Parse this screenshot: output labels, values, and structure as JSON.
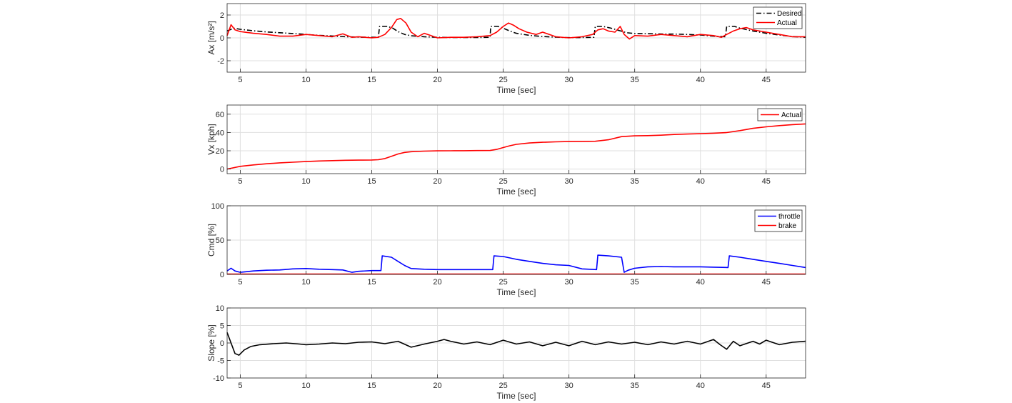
{
  "chart_data": [
    {
      "type": "line",
      "ylabel": "Ax [m/s²]",
      "xlabel": "Time [sec]",
      "xlim": [
        4,
        48
      ],
      "ylim": [
        -3,
        3
      ],
      "xticks": [
        5,
        10,
        15,
        20,
        25,
        30,
        35,
        40,
        45
      ],
      "yticks": [
        -2,
        0,
        2
      ],
      "grid": true,
      "legend_position": "top-right",
      "series": [
        {
          "name": "Desired",
          "color": "#000000",
          "style": "dashdot",
          "x": [
            4,
            4.5,
            5,
            6,
            7,
            8,
            9,
            10,
            11,
            12,
            13,
            14,
            15,
            15.5,
            15.6,
            16.2,
            16.6,
            17,
            17.5,
            18,
            19,
            20,
            21,
            22,
            23,
            24,
            24.05,
            24.6,
            25,
            25.5,
            26,
            27,
            28,
            29,
            30,
            31,
            31.9,
            32,
            32.6,
            33.2,
            33.8,
            34.4,
            35,
            36,
            37,
            38,
            39,
            40,
            41,
            41.9,
            42,
            42.6,
            43,
            44,
            45,
            46,
            47,
            48
          ],
          "y": [
            0.6,
            0.85,
            0.75,
            0.62,
            0.52,
            0.45,
            0.38,
            0.3,
            0.22,
            0.16,
            0.1,
            0.06,
            0.05,
            0.05,
            1.0,
            1.0,
            0.85,
            0.55,
            0.3,
            0.18,
            0.1,
            0.05,
            0.03,
            0.03,
            0.03,
            0.05,
            1.0,
            1.0,
            0.85,
            0.6,
            0.4,
            0.22,
            0.12,
            0.06,
            0.02,
            0.03,
            0.05,
            1.0,
            1.0,
            0.85,
            0.65,
            0.45,
            0.38,
            0.36,
            0.34,
            0.33,
            0.3,
            0.25,
            0.15,
            0.1,
            1.0,
            1.0,
            0.85,
            0.6,
            0.4,
            0.25,
            0.12,
            0.05
          ]
        },
        {
          "name": "Actual",
          "color": "#ff0000",
          "style": "solid",
          "x": [
            4,
            4.3,
            4.6,
            5,
            6,
            7,
            8,
            9,
            10,
            11,
            12,
            12.8,
            13.5,
            14,
            15,
            15.5,
            16,
            16.5,
            16.9,
            17.2,
            17.6,
            18,
            18.5,
            19,
            19.5,
            20,
            21,
            22,
            23,
            24,
            24.5,
            25,
            25.4,
            25.8,
            26.2,
            26.8,
            27.5,
            28,
            29,
            30,
            31,
            31.8,
            32.2,
            32.6,
            33,
            33.5,
            33.9,
            34.2,
            34.6,
            35,
            36,
            37,
            38,
            39,
            40,
            41,
            41.6,
            42,
            42.5,
            43,
            43.5,
            44,
            45,
            46,
            47,
            48
          ],
          "y": [
            0.2,
            1.15,
            0.7,
            0.55,
            0.4,
            0.3,
            0.15,
            0.15,
            0.3,
            0.2,
            0.1,
            0.35,
            0.05,
            0.1,
            0.0,
            0.05,
            0.3,
            0.9,
            1.6,
            1.7,
            1.3,
            0.5,
            0.1,
            0.4,
            0.2,
            0.0,
            0.05,
            0.05,
            0.1,
            0.2,
            0.5,
            1.0,
            1.3,
            1.1,
            0.8,
            0.5,
            0.3,
            0.5,
            0.1,
            0.0,
            0.1,
            0.3,
            0.7,
            0.8,
            0.6,
            0.5,
            1.0,
            0.3,
            -0.1,
            0.2,
            0.15,
            0.3,
            0.2,
            0.1,
            0.3,
            0.2,
            0.05,
            0.3,
            0.6,
            0.8,
            0.9,
            0.7,
            0.5,
            0.3,
            0.1,
            0.1
          ]
        }
      ]
    },
    {
      "type": "line",
      "ylabel": "Vx [kph]",
      "xlabel": "Time [sec]",
      "xlim": [
        4,
        48
      ],
      "ylim": [
        -5,
        70
      ],
      "xticks": [
        5,
        10,
        15,
        20,
        25,
        30,
        35,
        40,
        45
      ],
      "yticks": [
        0,
        20,
        40,
        60
      ],
      "grid": true,
      "legend_position": "top-right",
      "series": [
        {
          "name": "Actual",
          "color": "#ff0000",
          "style": "solid",
          "x": [
            4,
            5,
            6,
            7,
            8,
            9,
            10,
            11,
            12,
            13,
            14,
            15,
            15.5,
            16,
            16.5,
            17,
            17.5,
            18,
            19,
            20,
            21,
            22,
            23,
            24,
            24.5,
            25,
            25.5,
            26,
            27,
            28,
            29,
            30,
            31,
            32,
            33,
            34,
            35,
            36,
            37,
            38,
            39,
            40,
            41,
            42,
            43,
            44,
            45,
            46,
            47,
            48
          ],
          "y": [
            0,
            3,
            4.5,
            5.8,
            6.8,
            7.5,
            8.2,
            8.8,
            9.2,
            9.6,
            9.8,
            9.9,
            10.2,
            11.5,
            14,
            16.5,
            18.2,
            19,
            19.6,
            19.9,
            20,
            20.1,
            20.2,
            20.3,
            21.5,
            23.5,
            25.5,
            27,
            28.5,
            29.3,
            29.8,
            30.1,
            30.2,
            30.4,
            32,
            35.5,
            36.3,
            36.6,
            37,
            37.8,
            38.3,
            38.7,
            39.2,
            39.9,
            42,
            44.5,
            46.2,
            47.5,
            48.6,
            49.4
          ]
        }
      ]
    },
    {
      "type": "line",
      "ylabel": "Cmd [%]",
      "xlabel": "Time [sec]",
      "xlim": [
        4,
        48
      ],
      "ylim": [
        0,
        100
      ],
      "xticks": [
        5,
        10,
        15,
        20,
        25,
        30,
        35,
        40,
        45
      ],
      "yticks": [
        0,
        50,
        100
      ],
      "grid": true,
      "legend_position": "top-right",
      "series": [
        {
          "name": "throttle",
          "color": "#0000ff",
          "style": "solid",
          "x": [
            4,
            4.3,
            4.6,
            5,
            5.5,
            6,
            7,
            8,
            9,
            10,
            11,
            12,
            12.8,
            13.5,
            14,
            15,
            15.7,
            15.8,
            16.5,
            17,
            17.5,
            18,
            19,
            20,
            21,
            22,
            23,
            24.2,
            24.3,
            25,
            26,
            27,
            28,
            29,
            30,
            31,
            32.1,
            32.2,
            33,
            34,
            34.2,
            34.5,
            35,
            36,
            37,
            38,
            39,
            40,
            41,
            42.1,
            42.2,
            43,
            44,
            45,
            46,
            47,
            48
          ],
          "y": [
            5,
            9,
            5,
            3,
            4,
            5,
            6,
            6.5,
            8,
            8.5,
            7.5,
            7,
            6.5,
            3,
            4.5,
            5.5,
            5.5,
            27,
            25,
            19,
            13,
            8.5,
            7.5,
            7,
            7,
            7,
            7,
            7,
            27,
            26,
            22,
            19,
            16,
            14,
            13,
            8,
            7,
            28,
            27,
            25,
            3,
            6,
            9,
            11,
            11.5,
            11,
            11,
            11,
            10.5,
            10,
            27,
            25,
            22,
            19,
            16,
            13,
            10
          ]
        },
        {
          "name": "brake",
          "color": "#ff0000",
          "style": "solid",
          "x": [
            4,
            48
          ],
          "y": [
            0.5,
            0.5
          ]
        }
      ]
    },
    {
      "type": "line",
      "ylabel": "Slope [%]",
      "xlabel": "Time [sec]",
      "xlim": [
        4,
        48
      ],
      "ylim": [
        -10,
        10
      ],
      "xticks": [
        5,
        10,
        15,
        20,
        25,
        30,
        35,
        40,
        45
      ],
      "yticks": [
        -10,
        -5,
        0,
        5,
        10
      ],
      "grid": true,
      "legend_position": "none",
      "series": [
        {
          "color": "#000000",
          "style": "solid",
          "x": [
            4,
            4.3,
            4.6,
            4.9,
            5.3,
            5.8,
            6.5,
            7.5,
            8.5,
            9.5,
            10,
            11,
            12,
            13,
            14,
            15,
            16,
            17,
            18,
            19,
            20,
            20.5,
            21,
            22,
            23,
            24,
            25,
            26,
            27,
            28,
            29,
            30,
            31,
            32,
            33,
            34,
            35,
            36,
            37,
            38,
            39,
            40,
            41,
            41.5,
            42,
            42.5,
            43,
            44,
            44.5,
            45,
            46,
            47,
            48
          ],
          "y": [
            3,
            0,
            -3,
            -3.5,
            -2,
            -1,
            -0.5,
            -0.2,
            0,
            -0.3,
            -0.5,
            -0.3,
            0,
            -0.2,
            0.2,
            0.3,
            -0.2,
            0.5,
            -1.2,
            -0.3,
            0.5,
            1,
            0.5,
            -0.3,
            0.3,
            -0.5,
            0.8,
            -0.3,
            0.3,
            -0.8,
            0.2,
            -0.8,
            0.5,
            -0.5,
            0.3,
            -0.3,
            0.2,
            -0.5,
            0.3,
            -0.3,
            0.5,
            -0.3,
            1,
            -0.5,
            -1.8,
            0.5,
            -0.8,
            0.5,
            -0.3,
            0.8,
            -0.5,
            0.2,
            0.5
          ]
        }
      ]
    }
  ]
}
